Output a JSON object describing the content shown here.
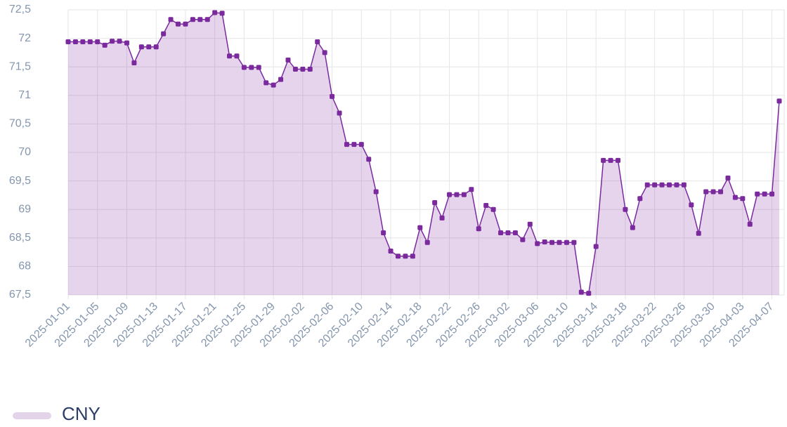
{
  "chart_data": {
    "type": "line",
    "categories": [
      "2025-01-01",
      null,
      null,
      null,
      "2025-01-05",
      null,
      null,
      null,
      "2025-01-09",
      null,
      null,
      null,
      "2025-01-13",
      null,
      null,
      null,
      "2025-01-17",
      null,
      null,
      null,
      "2025-01-21",
      null,
      null,
      null,
      "2025-01-25",
      null,
      null,
      null,
      "2025-01-29",
      null,
      null,
      null,
      "2025-02-02",
      null,
      null,
      null,
      "2025-02-06",
      null,
      null,
      null,
      "2025-02-10",
      null,
      null,
      null,
      "2025-02-14",
      null,
      null,
      null,
      "2025-02-18",
      null,
      null,
      null,
      "2025-02-22",
      null,
      null,
      null,
      "2025-02-26",
      null,
      null,
      null,
      "2025-03-02",
      null,
      null,
      null,
      "2025-03-06",
      null,
      null,
      null,
      "2025-03-10",
      null,
      null,
      null,
      "2025-03-14",
      null,
      null,
      null,
      "2025-03-18",
      null,
      null,
      null,
      "2025-03-22",
      null,
      null,
      null,
      "2025-03-26",
      null,
      null,
      null,
      "2025-03-30",
      null,
      null,
      null,
      "2025-04-03",
      null,
      null,
      null,
      "2025-04-07",
      null
    ],
    "series": [
      {
        "name": "CNY",
        "color": "#7b2a9e",
        "values": [
          71.94,
          71.94,
          71.94,
          71.94,
          71.94,
          71.88,
          71.95,
          71.95,
          71.92,
          71.57,
          71.85,
          71.85,
          71.85,
          72.08,
          72.33,
          72.25,
          72.25,
          72.33,
          72.33,
          72.33,
          72.45,
          72.44,
          71.69,
          71.69,
          71.49,
          71.49,
          71.49,
          71.22,
          71.18,
          71.28,
          71.62,
          71.46,
          71.46,
          71.46,
          71.94,
          71.75,
          70.98,
          70.69,
          70.14,
          70.14,
          70.14,
          69.88,
          69.31,
          68.59,
          68.27,
          68.18,
          68.18,
          68.18,
          68.68,
          68.42,
          69.12,
          68.85,
          69.26,
          69.26,
          69.26,
          69.35,
          68.66,
          69.07,
          69.0,
          68.59,
          68.59,
          68.59,
          68.47,
          68.74,
          68.4,
          68.43,
          68.42,
          68.42,
          68.42,
          68.42,
          67.55,
          67.53,
          68.35,
          69.86,
          69.86,
          69.86,
          69.0,
          68.68,
          69.19,
          69.43,
          69.43,
          69.43,
          69.43,
          69.43,
          69.43,
          69.08,
          68.58,
          69.31,
          69.31,
          69.31,
          69.55,
          69.21,
          69.19,
          68.74,
          69.27,
          69.27,
          69.27,
          70.9
        ]
      }
    ],
    "ylim": [
      67.5,
      72.5
    ],
    "yticks": [
      {
        "value": 67.5,
        "label": "67,5"
      },
      68,
      {
        "value": 68.5,
        "label": "68,5"
      },
      69,
      {
        "value": 69.5,
        "label": "69,5"
      },
      70,
      {
        "value": 70.5,
        "label": "70,5"
      },
      71,
      {
        "value": 71.5,
        "label": "71,5"
      },
      72,
      {
        "value": 72.5,
        "label": "72,5"
      }
    ],
    "grid": true
  }
}
